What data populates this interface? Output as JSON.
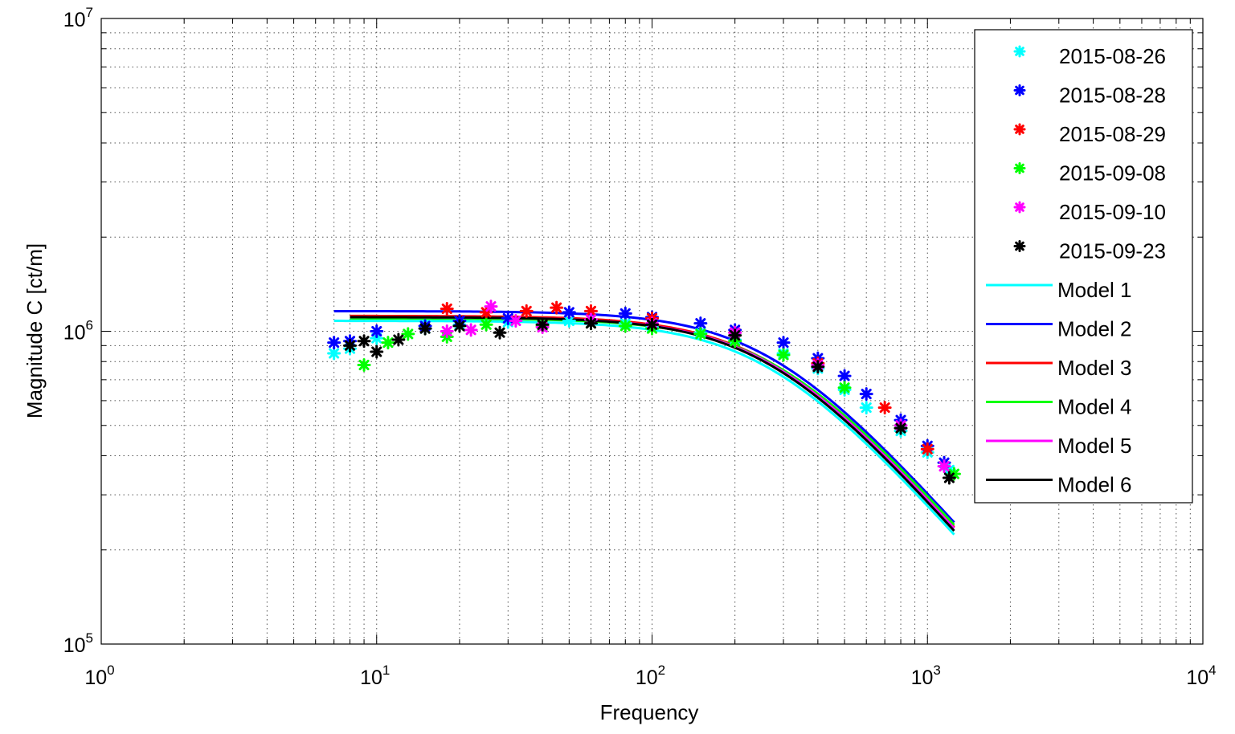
{
  "chart_data": {
    "type": "scatter",
    "title": "",
    "xlabel": "Frequency",
    "ylabel": "Magnitude C [ct/m]",
    "xscale": "log",
    "yscale": "log",
    "xlim": [
      1,
      10000
    ],
    "ylim": [
      100000,
      10000000
    ],
    "grid": true,
    "legend_position": "top-right",
    "x_ticks": [
      {
        "base": "10",
        "exp": "0"
      },
      {
        "base": "10",
        "exp": "1"
      },
      {
        "base": "10",
        "exp": "2"
      },
      {
        "base": "10",
        "exp": "3"
      },
      {
        "base": "10",
        "exp": "4"
      }
    ],
    "y_ticks": [
      {
        "base": "10",
        "exp": "5"
      },
      {
        "base": "10",
        "exp": "6"
      },
      {
        "base": "10",
        "exp": "7"
      }
    ],
    "measurements": [
      {
        "name": "2015-08-26",
        "color": "#00ffff",
        "marker": "star",
        "x": [
          7,
          8,
          10,
          15,
          20,
          30,
          50,
          80,
          100,
          150,
          200,
          300,
          400,
          500,
          600,
          800,
          1000,
          1200
        ],
        "y": [
          850000,
          880000,
          950000,
          1020000,
          1050000,
          1070000,
          1080000,
          1060000,
          1030000,
          990000,
          940000,
          850000,
          760000,
          650000,
          570000,
          480000,
          410000,
          360000
        ]
      },
      {
        "name": "2015-08-28",
        "color": "#0000ff",
        "marker": "star",
        "x": [
          7,
          8,
          10,
          15,
          20,
          30,
          50,
          80,
          100,
          150,
          200,
          300,
          400,
          500,
          600,
          800,
          1000,
          1150
        ],
        "y": [
          920000,
          930000,
          1000000,
          1040000,
          1080000,
          1100000,
          1150000,
          1140000,
          1110000,
          1060000,
          1010000,
          920000,
          820000,
          720000,
          630000,
          520000,
          430000,
          380000
        ]
      },
      {
        "name": "2015-08-29",
        "color": "#ff0000",
        "marker": "star",
        "x": [
          18,
          25,
          35,
          45,
          60,
          100,
          200,
          400,
          700,
          1000
        ],
        "y": [
          1180000,
          1150000,
          1160000,
          1190000,
          1160000,
          1100000,
          990000,
          790000,
          570000,
          420000
        ]
      },
      {
        "name": "2015-09-08",
        "color": "#00ff00",
        "marker": "star",
        "x": [
          9,
          11,
          13,
          18,
          25,
          40,
          60,
          80,
          100,
          150,
          200,
          300,
          500,
          800,
          1250
        ],
        "y": [
          780000,
          920000,
          980000,
          960000,
          1050000,
          1040000,
          1060000,
          1040000,
          1020000,
          980000,
          930000,
          840000,
          660000,
          490000,
          350000
        ]
      },
      {
        "name": "2015-09-10",
        "color": "#ff00ff",
        "marker": "star",
        "x": [
          18,
          22,
          26,
          32,
          40,
          60,
          100,
          200,
          400,
          800,
          1150
        ],
        "y": [
          1000000,
          1010000,
          1200000,
          1080000,
          1030000,
          1090000,
          1060000,
          990000,
          780000,
          500000,
          370000
        ]
      },
      {
        "name": "2015-09-23",
        "color": "#000000",
        "marker": "star",
        "x": [
          8,
          9,
          10,
          12,
          15,
          20,
          28,
          40,
          60,
          100,
          200,
          400,
          800,
          1200
        ],
        "y": [
          900000,
          930000,
          860000,
          940000,
          1020000,
          1040000,
          990000,
          1050000,
          1060000,
          1050000,
          970000,
          770000,
          490000,
          340000
        ]
      }
    ],
    "models": [
      {
        "name": "Model 1",
        "color": "#00ffff",
        "x_start": 7,
        "x_end": 1250,
        "y_flat": 1080000,
        "corner": 265,
        "y_end": 350000
      },
      {
        "name": "Model 2",
        "color": "#0000ff",
        "x_start": 7,
        "x_end": 1250,
        "y_flat": 1160000,
        "corner": 270,
        "y_end": 340000
      },
      {
        "name": "Model 3",
        "color": "#ff0000",
        "x_start": 8,
        "x_end": 1250,
        "y_flat": 1120000,
        "corner": 270,
        "y_end": 340000
      },
      {
        "name": "Model 4",
        "color": "#00ff00",
        "x_start": 8,
        "x_end": 1250,
        "y_flat": 1100000,
        "corner": 280,
        "y_end": 350000
      },
      {
        "name": "Model 5",
        "color": "#ff00ff",
        "x_start": 8,
        "x_end": 1250,
        "y_flat": 1110000,
        "corner": 270,
        "y_end": 345000
      },
      {
        "name": "Model 6",
        "color": "#000000",
        "x_start": 8,
        "x_end": 1250,
        "y_flat": 1110000,
        "corner": 265,
        "y_end": 330000
      }
    ]
  }
}
